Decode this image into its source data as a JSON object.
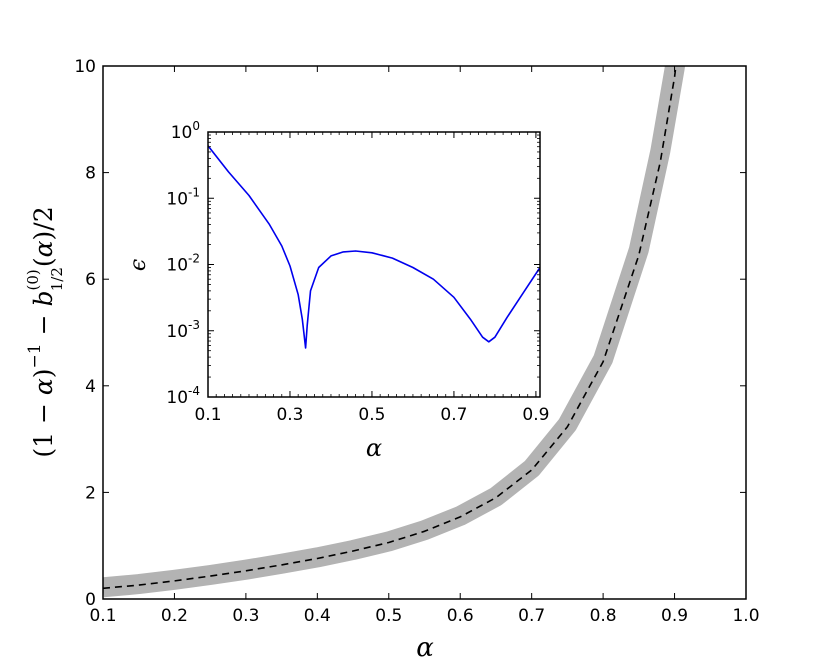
{
  "chart_data": [
    {
      "type": "line",
      "name": "main",
      "xlabel": "α",
      "ylabel": "(1 − α)⁻¹ − b⁽⁰⁾₁/₂(α)/2",
      "xlim": [
        0.1,
        1.0
      ],
      "ylim": [
        0,
        10
      ],
      "xticks": [
        "0.1",
        "0.2",
        "0.3",
        "0.4",
        "0.5",
        "0.6",
        "0.7",
        "0.8",
        "0.9",
        "1.0"
      ],
      "yticks": [
        "0",
        "2",
        "4",
        "6",
        "8",
        "10"
      ],
      "grid": false,
      "series": [
        {
          "style": "thick grey band",
          "color": "#b3b3b3",
          "x": [
            0.1,
            0.15,
            0.2,
            0.25,
            0.3,
            0.35,
            0.4,
            0.45,
            0.5,
            0.55,
            0.6,
            0.65,
            0.7,
            0.75,
            0.8,
            0.85,
            0.88,
            0.9,
            0.91,
            0.92
          ],
          "y": [
            0.22,
            0.28,
            0.36,
            0.45,
            0.55,
            0.66,
            0.78,
            0.92,
            1.08,
            1.29,
            1.56,
            1.92,
            2.45,
            3.27,
            4.5,
            6.55,
            8.4,
            9.95,
            10.9,
            12.0
          ]
        },
        {
          "style": "dashed",
          "color": "#000000",
          "x": [
            0.1,
            0.15,
            0.2,
            0.25,
            0.3,
            0.35,
            0.4,
            0.45,
            0.5,
            0.55,
            0.6,
            0.65,
            0.7,
            0.75,
            0.8,
            0.85,
            0.88,
            0.9,
            0.91,
            0.92
          ],
          "y": [
            0.2,
            0.26,
            0.34,
            0.43,
            0.53,
            0.64,
            0.76,
            0.9,
            1.06,
            1.27,
            1.54,
            1.9,
            2.42,
            3.23,
            4.45,
            6.45,
            8.2,
            9.8,
            10.9,
            12.0
          ]
        }
      ]
    },
    {
      "type": "line",
      "name": "inset",
      "xlabel": "α",
      "ylabel": "ϵ",
      "xlim": [
        0.1,
        0.91
      ],
      "ylim": [
        0.0001,
        1
      ],
      "yscale": "log",
      "xticks": [
        "0.1",
        "0.3",
        "0.5",
        "0.7",
        "0.9"
      ],
      "yticks": [
        {
          "base": "10",
          "exp": "0"
        },
        {
          "base": "10",
          "exp": "-1"
        },
        {
          "base": "10",
          "exp": "-2"
        },
        {
          "base": "10",
          "exp": "-3"
        },
        {
          "base": "10",
          "exp": "-4"
        }
      ],
      "grid": false,
      "series": [
        {
          "color": "#0000ee",
          "x": [
            0.1,
            0.15,
            0.2,
            0.25,
            0.28,
            0.3,
            0.32,
            0.33,
            0.338,
            0.342,
            0.35,
            0.37,
            0.4,
            0.43,
            0.46,
            0.5,
            0.55,
            0.6,
            0.65,
            0.7,
            0.74,
            0.77,
            0.785,
            0.8,
            0.83,
            0.87,
            0.91
          ],
          "y": [
            0.62,
            0.25,
            0.11,
            0.04,
            0.019,
            0.0095,
            0.0035,
            0.0015,
            0.00055,
            0.0012,
            0.004,
            0.009,
            0.0135,
            0.0155,
            0.016,
            0.015,
            0.0125,
            0.009,
            0.006,
            0.0032,
            0.0015,
            0.0008,
            0.00068,
            0.0008,
            0.0016,
            0.0038,
            0.009
          ]
        }
      ]
    }
  ]
}
